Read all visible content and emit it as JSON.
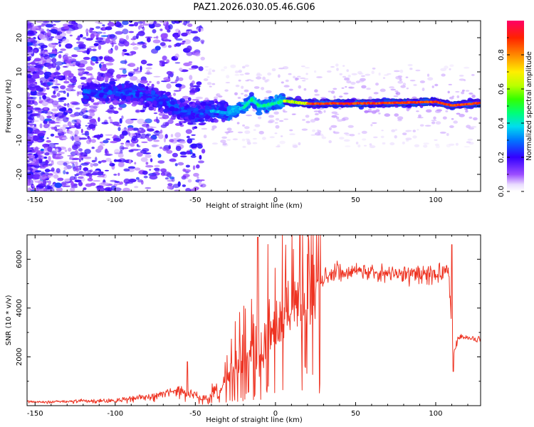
{
  "title": "PAZ1.2026.030.05.46.G06",
  "chart_data": [
    {
      "type": "heatmap",
      "name": "spectrogram",
      "xlabel": "Height of straight line (km)",
      "ylabel": "Frequency (Hz)",
      "xlim": [
        -155,
        128
      ],
      "ylim": [
        -25,
        25
      ],
      "xticks": [
        -150,
        -100,
        -50,
        0,
        50,
        100
      ],
      "yticks": [
        -20,
        -10,
        0,
        10,
        20
      ],
      "colorbar": {
        "label": "Normalized spectral amplitude",
        "range": [
          0.0,
          1.0
        ],
        "ticks": [
          0.0,
          0.2,
          0.4,
          0.6,
          0.8
        ]
      },
      "ridge_frequency": [
        {
          "h": -150,
          "f": 4
        },
        {
          "h": -110,
          "f": 4
        },
        {
          "h": -90,
          "f": 4
        },
        {
          "h": -75,
          "f": 2.5
        },
        {
          "h": -60,
          "f": -1
        },
        {
          "h": -50,
          "f": -2
        },
        {
          "h": -40,
          "f": -1.5
        },
        {
          "h": -30,
          "f": -2
        },
        {
          "h": -20,
          "f": -0.5
        },
        {
          "h": -15,
          "f": 2
        },
        {
          "h": -10,
          "f": 0
        },
        {
          "h": -5,
          "f": 0.2
        },
        {
          "h": 5,
          "f": 1.5
        },
        {
          "h": 20,
          "f": 0.7
        },
        {
          "h": 60,
          "f": 0.8
        },
        {
          "h": 100,
          "f": 1.2
        },
        {
          "h": 110,
          "f": 0.2
        },
        {
          "h": 128,
          "f": 0.9
        }
      ]
    },
    {
      "type": "line",
      "name": "snr",
      "xlabel": "Height of straight line (km)",
      "ylabel": "SNR (10 * v/v)",
      "xlim": [
        -155,
        128
      ],
      "ylim": [
        0,
        7000
      ],
      "xticks": [
        -150,
        -100,
        -50,
        0,
        50,
        100
      ],
      "yticks": [
        2000,
        4000,
        6000
      ],
      "series": [
        {
          "name": "SNR",
          "color": "#ee3322",
          "envelope": [
            {
              "h": -155,
              "v": 150
            },
            {
              "h": -100,
              "v": 200
            },
            {
              "h": -80,
              "v": 350
            },
            {
              "h": -60,
              "v": 600
            },
            {
              "h": -45,
              "v": 300
            },
            {
              "h": -35,
              "v": 500
            },
            {
              "h": -25,
              "v": 1600
            },
            {
              "h": -15,
              "v": 2200
            },
            {
              "h": -10,
              "v": 1600
            },
            {
              "h": -5,
              "v": 3000
            },
            {
              "h": 0,
              "v": 3300
            },
            {
              "h": 10,
              "v": 4000
            },
            {
              "h": 20,
              "v": 4500
            },
            {
              "h": 30,
              "v": 5200
            },
            {
              "h": 40,
              "v": 5500
            },
            {
              "h": 60,
              "v": 5500
            },
            {
              "h": 80,
              "v": 5400
            },
            {
              "h": 100,
              "v": 5400
            },
            {
              "h": 108,
              "v": 5500
            },
            {
              "h": 111,
              "v": 2000
            },
            {
              "h": 114,
              "v": 2800
            },
            {
              "h": 128,
              "v": 2700
            }
          ],
          "peaks": [
            {
              "h": -55,
              "v": 1800
            },
            {
              "h": -11,
              "v": 6900
            },
            {
              "h": 110,
              "v": 6600
            }
          ],
          "minimum": {
            "h": 111,
            "v": 1400
          }
        }
      ]
    }
  ]
}
